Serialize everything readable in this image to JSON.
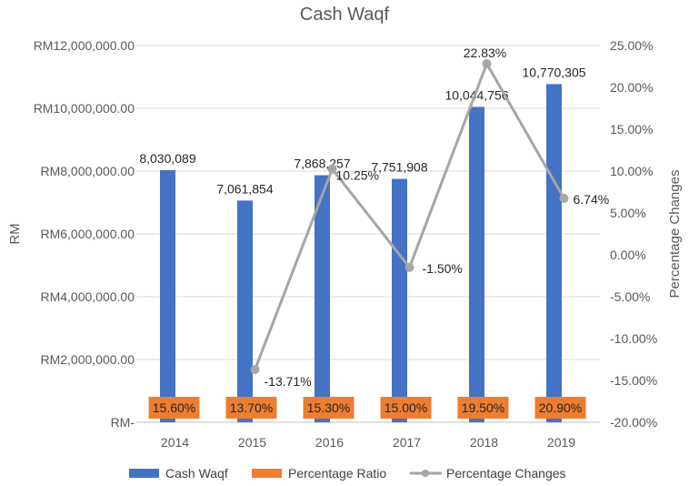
{
  "chart_data": {
    "type": "bar",
    "title": "Cash Waqf",
    "categories": [
      "2014",
      "2015",
      "2016",
      "2017",
      "2018",
      "2019"
    ],
    "ylabel": "RM",
    "y2label": "Percentage Changes",
    "ylim": [
      0,
      12000000
    ],
    "y2lim": [
      -20,
      25
    ],
    "y_ticks": [
      "RM-",
      "RM2,000,000.00",
      "RM4,000,000.00",
      "RM6,000,000.00",
      "RM8,000,000.00",
      "RM10,000,000.00",
      "RM12,000,000.00"
    ],
    "y2_ticks": [
      "-20.00%",
      "-15.00%",
      "-10.00%",
      "-5.00%",
      "0.00%",
      "5.00%",
      "10.00%",
      "15.00%",
      "20.00%",
      "25.00%"
    ],
    "series": [
      {
        "name": "Cash Waqf",
        "type": "bar",
        "color": "#4472C4",
        "values": [
          8030089,
          7061854,
          7868257,
          7751908,
          10044756,
          10770305
        ],
        "labels": [
          "8,030,089",
          "7,061,854",
          "7,868,257",
          "7,751,908",
          "10,044,756",
          "10,770,305"
        ]
      },
      {
        "name": "Percentage Ratio",
        "type": "label-box",
        "color": "#ED7D31",
        "values": [
          15.6,
          13.7,
          15.3,
          15.0,
          19.5,
          20.9
        ],
        "labels": [
          "15.60%",
          "13.70%",
          "15.30%",
          "15.00%",
          "19.50%",
          "20.90%"
        ]
      },
      {
        "name": "Percentage Changes",
        "type": "line",
        "axis": "secondary",
        "color": "#A5A5A5",
        "x": [
          "2015",
          "2016",
          "2017",
          "2018",
          "2019"
        ],
        "values": [
          -13.71,
          10.25,
          -1.5,
          22.83,
          6.74
        ],
        "labels": [
          "-13.71%",
          "10.25%",
          "-1.50%",
          "22.83%",
          "6.74%"
        ]
      }
    ],
    "legend": {
      "position": "bottom",
      "items": [
        "Cash Waqf",
        "Percentage Ratio",
        "Percentage Changes"
      ]
    }
  }
}
